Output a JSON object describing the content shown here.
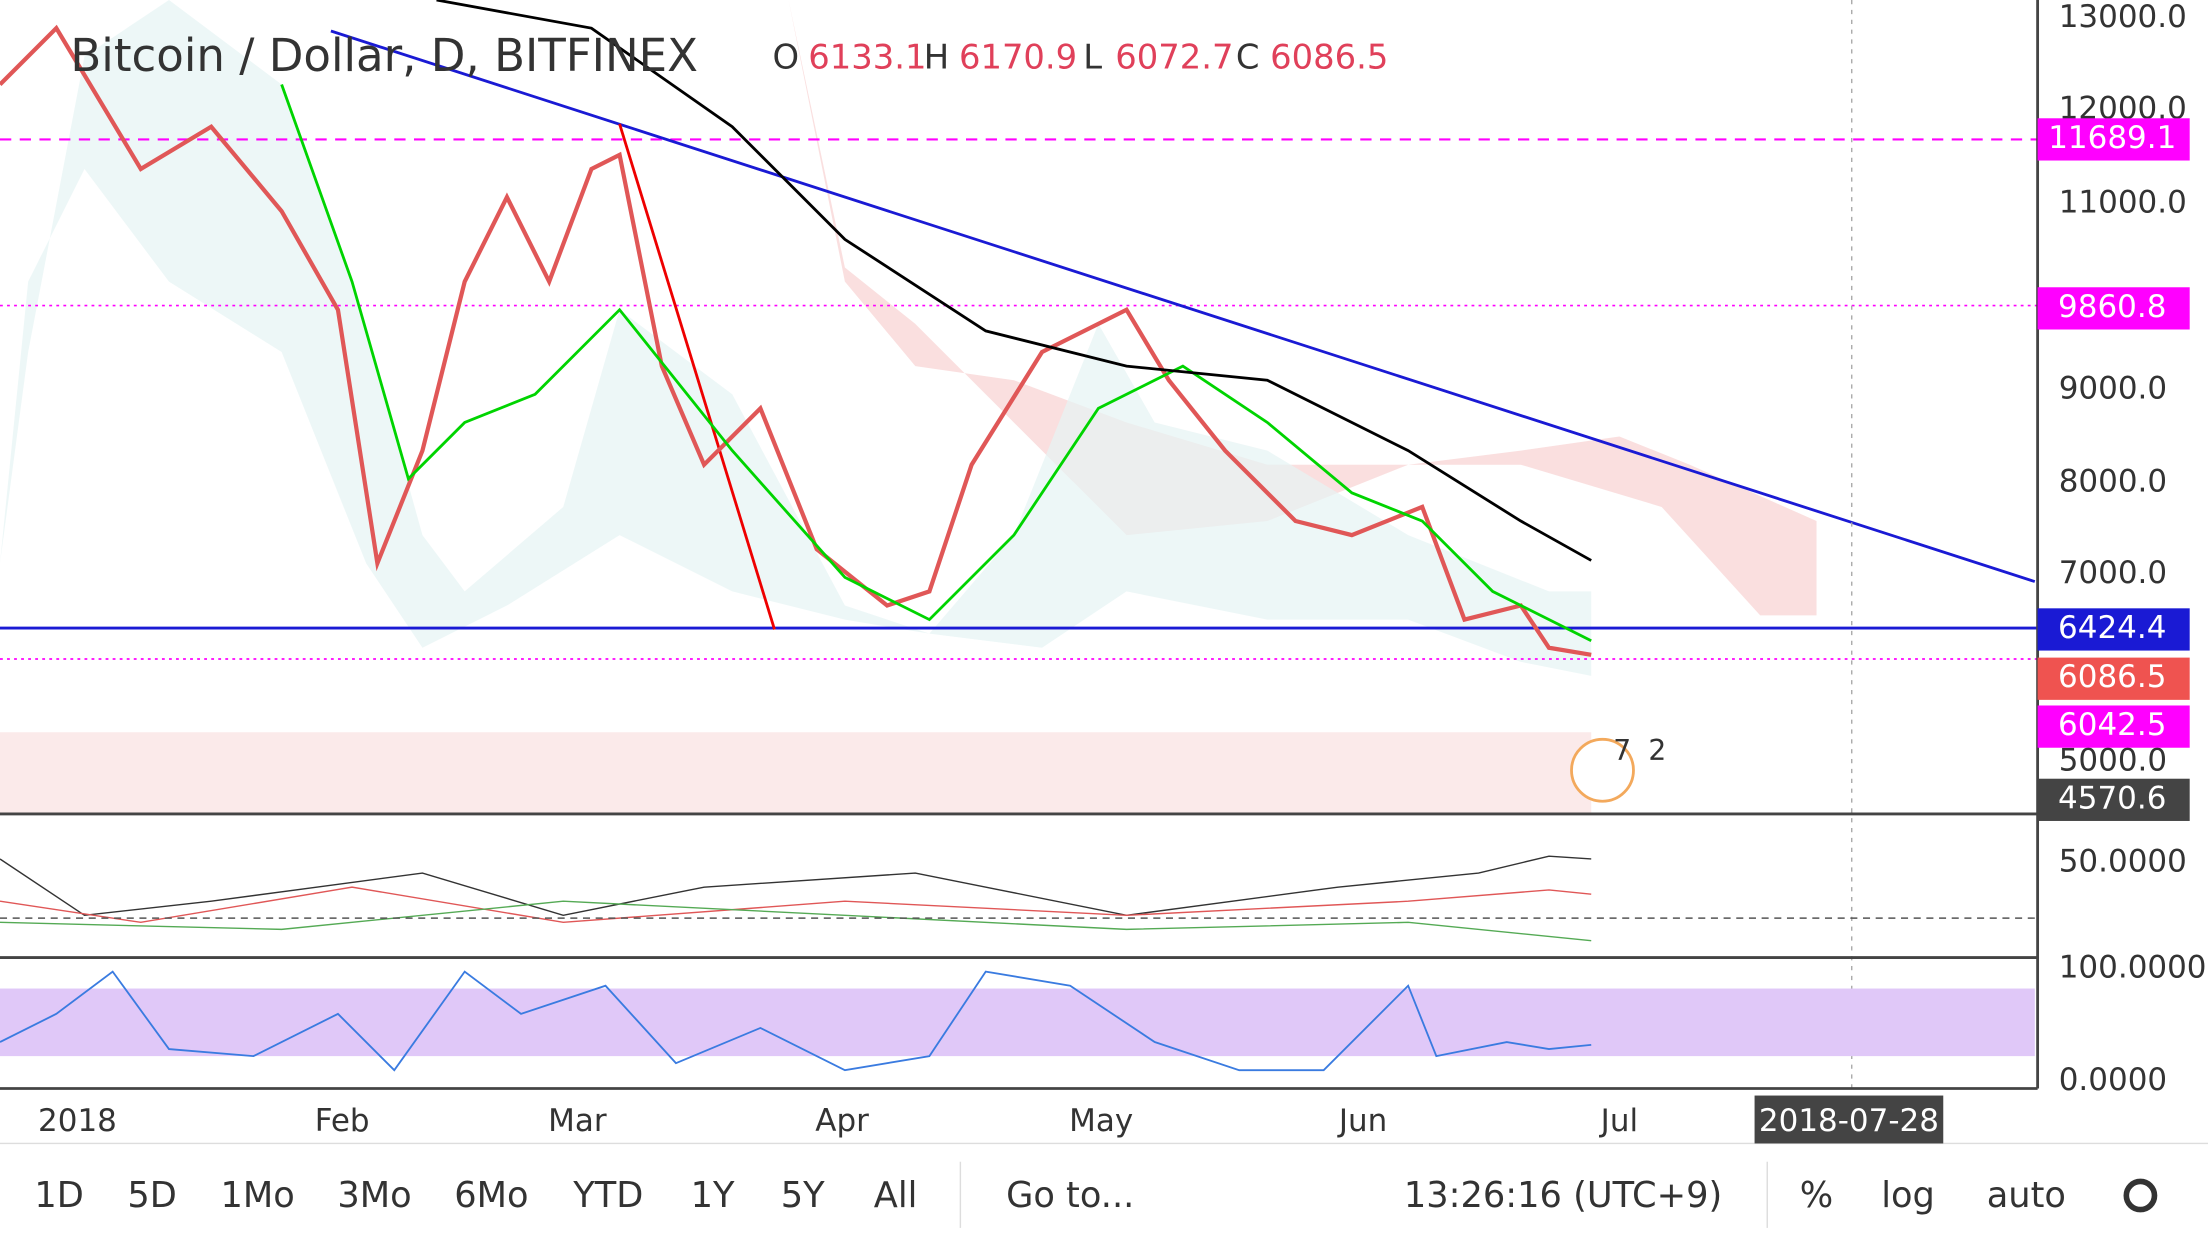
{
  "header": {
    "symbol": "Bitcoin / Dollar, D, BITFINEX",
    "ohlc": [
      {
        "key": "O",
        "value": "6133.1"
      },
      {
        "key": "H",
        "value": "6170.9"
      },
      {
        "key": "L",
        "value": "6072.7"
      },
      {
        "key": "C",
        "value": "6086.5"
      }
    ]
  },
  "price_axis": [
    "13000.0",
    "12000.0",
    "11000.0",
    "9000.0",
    "8000.0",
    "7000.0",
    "5000.0"
  ],
  "price_badges": [
    "11689.1",
    "9860.8",
    "6424.4",
    "6086.5",
    "6042.5",
    "4570.6"
  ],
  "indicator_axis": [
    "50.0000"
  ],
  "rsi_axis": [
    "100.0000",
    "0.0000"
  ],
  "time_axis": [
    "2018",
    "Feb",
    "Mar",
    "Apr",
    "May",
    "Jun",
    "Jul"
  ],
  "cursor_date": "2018-07-28",
  "event_badge": [
    "7",
    "2"
  ],
  "toolbar": {
    "ranges": [
      "1D",
      "5D",
      "1Mo",
      "3Mo",
      "6Mo",
      "YTD",
      "1Y",
      "5Y",
      "All"
    ],
    "goto": "Go to...",
    "clock": "13:26:16 (UTC+9)",
    "options": [
      "%",
      "log",
      "auto"
    ]
  }
}
